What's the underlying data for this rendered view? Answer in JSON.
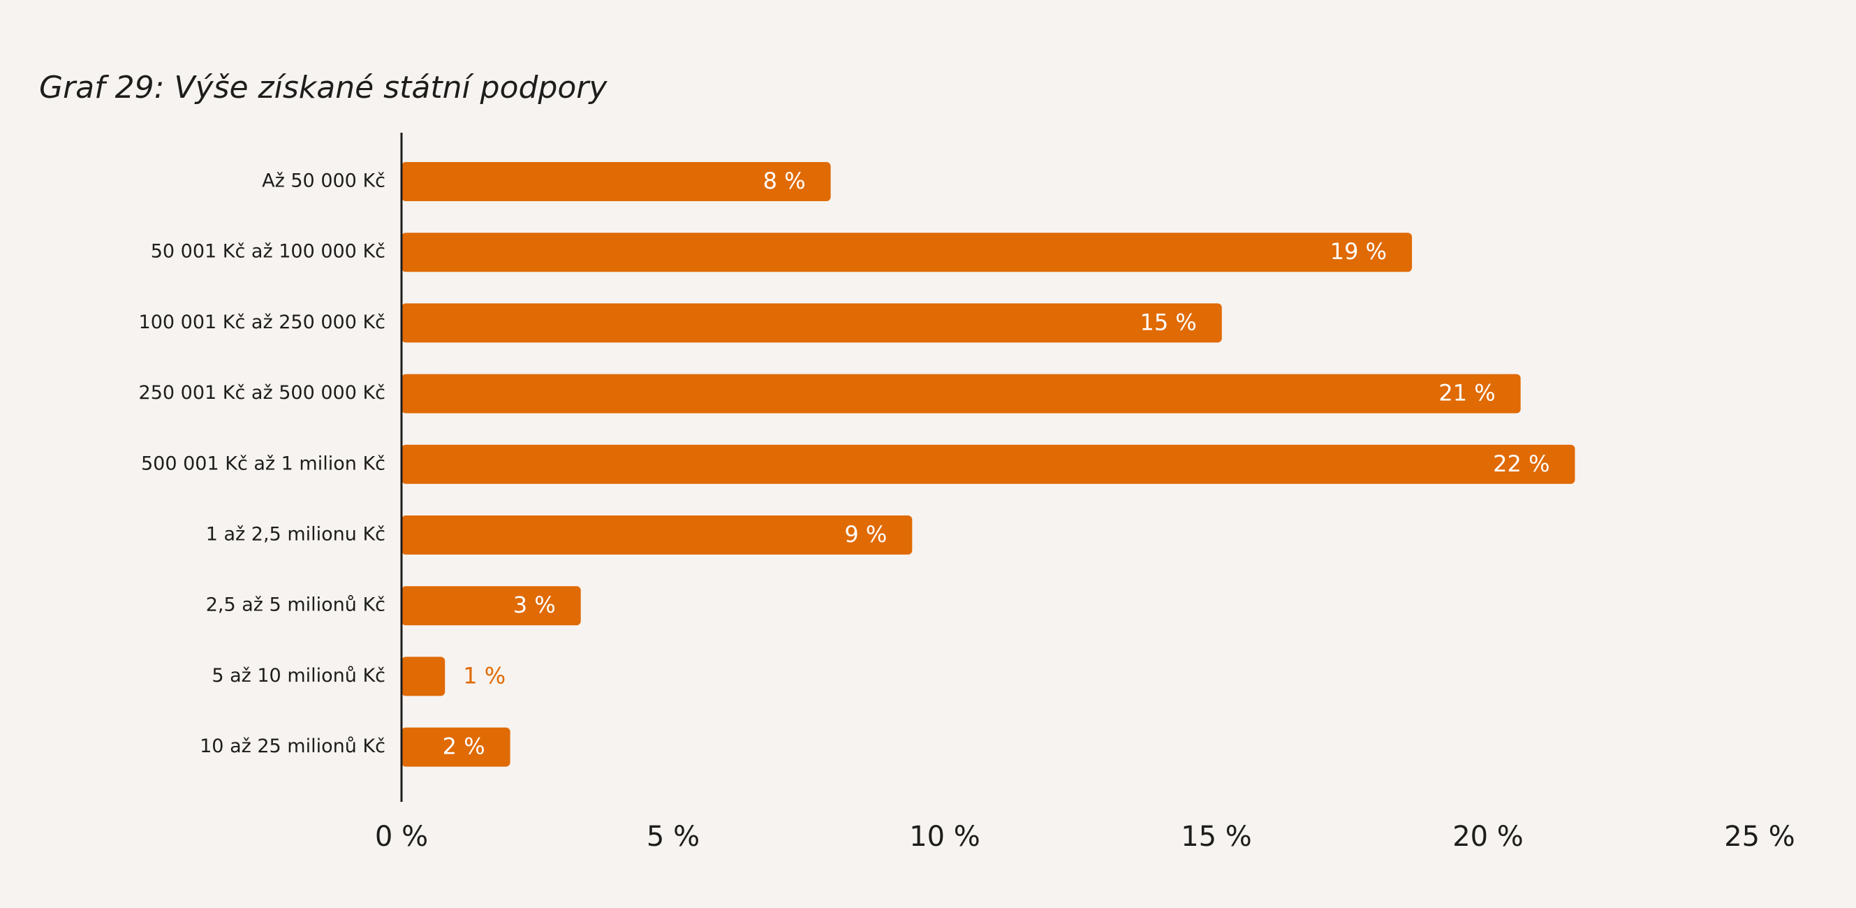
{
  "chart_data": {
    "type": "bar",
    "orientation": "horizontal",
    "title": "Graf 29: Výše získané státní podpory",
    "categories": [
      "Až 50 000 Kč",
      "50 001 Kč až 100 000 Kč",
      "100 001 Kč až 250 000 Kč",
      "250 001 Kč až 500 000 Kč",
      "500 001 Kč až 1 milion Kč",
      "1 až 2,5 milionu Kč",
      "2,5 až 5 milionů Kč",
      "5 až 10 milionů Kč",
      "10 až 25 milionů Kč"
    ],
    "values": [
      7.9,
      18.6,
      15.1,
      20.6,
      21.6,
      9.4,
      3.3,
      0.8,
      2.0
    ],
    "data_labels": [
      "8 %",
      "19 %",
      "15 %",
      "21 %",
      "22 %",
      "9 %",
      "3 %",
      "1 %",
      "2 %"
    ],
    "xlim": [
      0,
      25
    ],
    "x_ticks": [
      0,
      5,
      10,
      15,
      20,
      25
    ],
    "x_tick_labels": [
      "0 %",
      "5 %",
      "10 %",
      "15 %",
      "20 %",
      "25 %"
    ],
    "xlabel": "",
    "ylabel": "",
    "grid": false,
    "legend": "none",
    "colors": {
      "bar": "#e06a04",
      "label_inside": "#ffffff",
      "label_outside": "#e06a04",
      "axis": "#1d1d1b",
      "text": "#1d1d1b",
      "background": "#f7f3f0"
    }
  }
}
